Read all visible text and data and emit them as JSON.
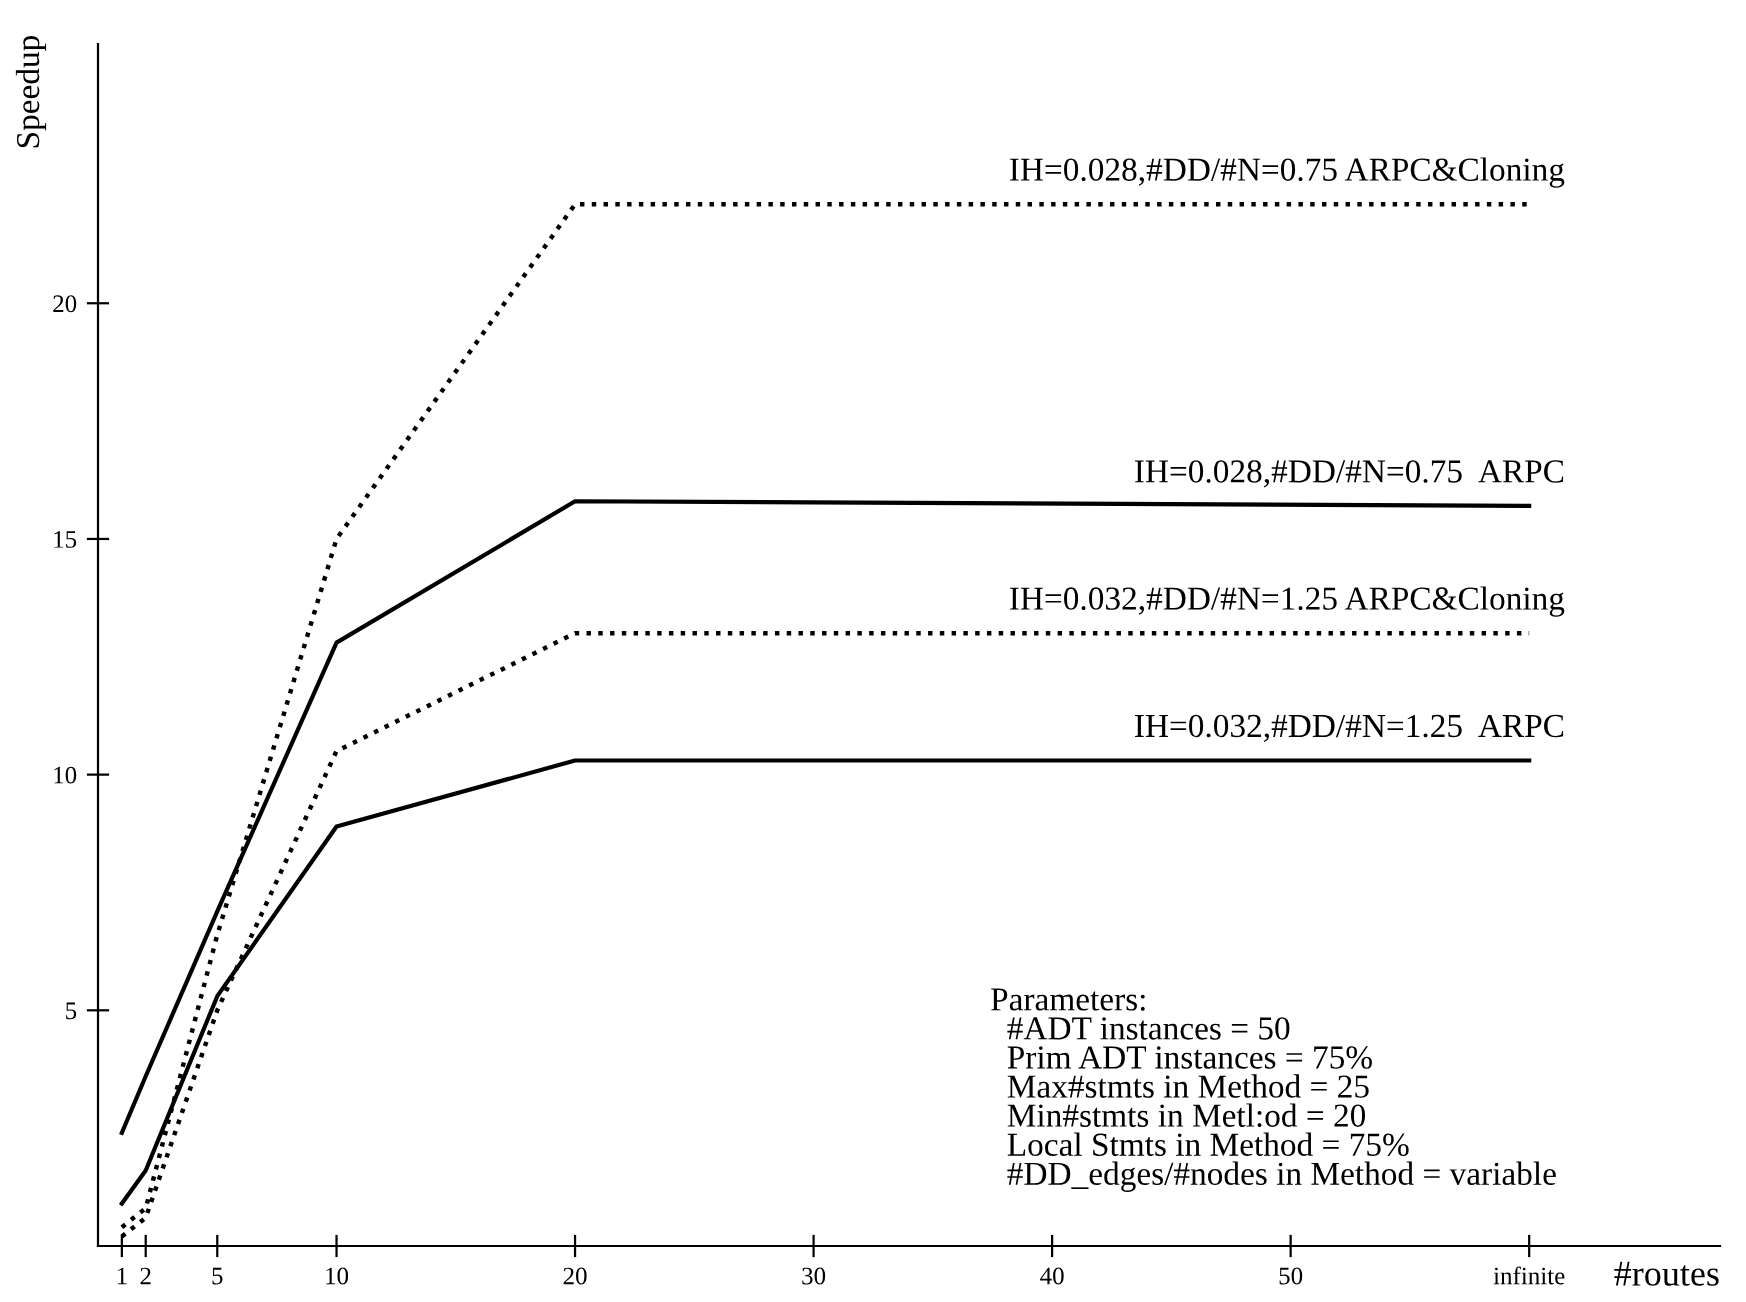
{
  "chart_data": {
    "type": "line",
    "ylabel": "Speedup",
    "xlabel": "#routes",
    "x": [
      1,
      2,
      5,
      10,
      20,
      60
    ],
    "xlim": [
      0,
      68
    ],
    "ylim": [
      0,
      25.5
    ],
    "xticks": [
      1,
      2,
      5,
      10,
      20,
      30,
      40,
      50,
      {
        "value": 60,
        "label": "infinite"
      }
    ],
    "yticks": [
      5,
      10,
      15,
      20
    ],
    "grid": false,
    "legend": false,
    "marker": "none",
    "series": [
      {
        "name": "IH=0.028,#DD/#N=0.75 ARPC&Cloning",
        "color": "#000000",
        "line_style": "dotted",
        "values": [
          0.4,
          0.8,
          6.6,
          15.0,
          22.1,
          22.1
        ]
      },
      {
        "name": "IH=0.028,#DD/#N=0.75  ARPC",
        "color": "#000000",
        "line_style": "solid",
        "values": [
          2.4,
          3.6,
          7.1,
          12.8,
          15.8,
          15.7
        ]
      },
      {
        "name": "IH=0.032,#DD/#N=1.25 ARPC&Cloning",
        "color": "#000000",
        "line_style": "dotted",
        "values": [
          0.2,
          0.6,
          5.0,
          10.5,
          13.0,
          13.0
        ]
      },
      {
        "name": "IH=0.032,#DD/#N=1.25  ARPC",
        "color": "#000000",
        "line_style": "solid",
        "values": [
          0.9,
          1.6,
          5.3,
          8.9,
          10.3,
          10.3
        ]
      }
    ],
    "annotations": [
      "Parameters:\n  #ADT instances = 50\n  Prim ADT instances = 75%\n  Max#stmts in Method = 25\n  Min#stmts in Metl:od = 20\n  Local Stmts in Method = 75%\n  #DD_edges/#nodes in Method = variable"
    ]
  }
}
